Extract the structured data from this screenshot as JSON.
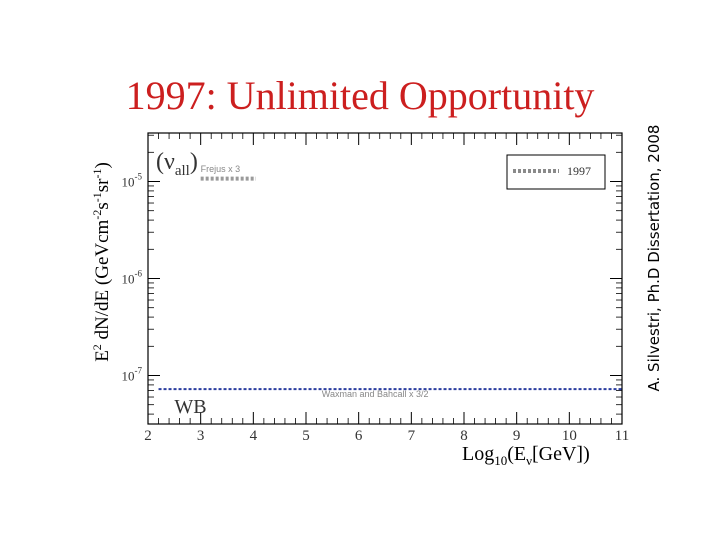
{
  "slide": {
    "title": "1997:  Unlimited Opportunity",
    "credit": "A. Silvestri, Ph.D Dissertation, 2008"
  },
  "chart_data": {
    "type": "line",
    "title": "",
    "panel_label": "(ν_all)",
    "xlabel": {
      "base": "Log",
      "sub1": "10",
      "mid": "(E",
      "sub2": "ν",
      "end": "[GeV])"
    },
    "ylabel": {
      "base": "E",
      "sup1": "2",
      "mid": " dN/dE (GeVcm",
      "sup2": "-2",
      "mid2": "s",
      "sup3": "-1",
      "mid3": "sr",
      "sup4": "-1",
      "end": ")"
    },
    "xlim": [
      2,
      11
    ],
    "ylim_log10": [
      -7.5,
      -4.5
    ],
    "y_scale": "log",
    "x_ticks": [
      "2",
      "3",
      "4",
      "5",
      "6",
      "7",
      "8",
      "9",
      "10",
      "11"
    ],
    "y_ticks": [
      {
        "base": "10",
        "exp": "-5",
        "log10": -5
      },
      {
        "base": "10",
        "exp": "-6",
        "log10": -6
      },
      {
        "base": "10",
        "exp": "-7",
        "log10": -7
      }
    ],
    "legend": {
      "placement": "top-right",
      "entries": [
        "1997"
      ]
    },
    "annotations": [
      {
        "text": "Frejus x 3",
        "x": 3.0,
        "log10y": -4.9
      },
      {
        "text": "Waxman and Bahcall x 3/2",
        "x": 5.3,
        "log10y": -7.22
      },
      {
        "text": "WB",
        "x": 2.5,
        "log10y": -7.22
      }
    ],
    "series": [
      {
        "name": "1997",
        "type": "line",
        "x": [
          2.2,
          11
        ],
        "log10y": [
          -7.14,
          -7.14
        ],
        "color": "#2a3c9e",
        "style": "dashed"
      },
      {
        "type": "line",
        "x": [
          3.0,
          4.05
        ],
        "log10y": [
          -4.97,
          -4.97
        ],
        "color": "#9a9a9a",
        "style": "dashed"
      }
    ],
    "grid": false
  },
  "colors": {
    "title": "#cc1f1f",
    "wb_line": "#2a3c9e",
    "frejus_line": "#9a9a9a",
    "legend_line": "#8a8a8a"
  }
}
